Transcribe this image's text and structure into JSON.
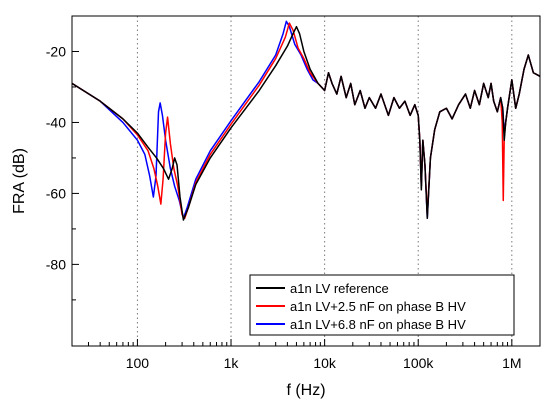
{
  "chart_data": {
    "type": "line",
    "title": "",
    "xlabel": "f (Hz)",
    "ylabel": "FRA (dB)",
    "xscale": "log",
    "xlim": [
      20,
      2000000
    ],
    "ylim": [
      -103,
      -10
    ],
    "grid": "vertical dotted lines at decades",
    "legend_position": "bottom-right",
    "x_ticks": [
      {
        "value": 100,
        "label": "100"
      },
      {
        "value": 1000,
        "label": "1k"
      },
      {
        "value": 10000,
        "label": "10k"
      },
      {
        "value": 100000,
        "label": "100k"
      },
      {
        "value": 1000000,
        "label": "1M"
      }
    ],
    "y_ticks": [
      {
        "value": -20,
        "label": "-20"
      },
      {
        "value": -40,
        "label": "-40"
      },
      {
        "value": -60,
        "label": "-60"
      },
      {
        "value": -80,
        "label": "-80"
      }
    ],
    "series": [
      {
        "name": "a1n LV reference",
        "color": "#000000",
        "points": [
          [
            20,
            -29
          ],
          [
            40,
            -34
          ],
          [
            70,
            -39
          ],
          [
            100,
            -43
          ],
          [
            130,
            -47
          ],
          [
            160,
            -50
          ],
          [
            190,
            -53
          ],
          [
            215,
            -56
          ],
          [
            235,
            -53
          ],
          [
            250,
            -50
          ],
          [
            265,
            -52
          ],
          [
            285,
            -61
          ],
          [
            310,
            -67.5
          ],
          [
            350,
            -64
          ],
          [
            420,
            -57.5
          ],
          [
            600,
            -50
          ],
          [
            1000,
            -41.5
          ],
          [
            2000,
            -31
          ],
          [
            3000,
            -24
          ],
          [
            4000,
            -18.5
          ],
          [
            4600,
            -15
          ],
          [
            5000,
            -13
          ],
          [
            5400,
            -15
          ],
          [
            6000,
            -20
          ],
          [
            7000,
            -25
          ],
          [
            8500,
            -29
          ],
          [
            10000,
            -31
          ],
          [
            11000,
            -26
          ],
          [
            12000,
            -29
          ],
          [
            13500,
            -32
          ],
          [
            15000,
            -27
          ],
          [
            17000,
            -33
          ],
          [
            19000,
            -29
          ],
          [
            21000,
            -35
          ],
          [
            24000,
            -31
          ],
          [
            27000,
            -36
          ],
          [
            30000,
            -33
          ],
          [
            35000,
            -36
          ],
          [
            40000,
            -32
          ],
          [
            48000,
            -38
          ],
          [
            55000,
            -33
          ],
          [
            63000,
            -36
          ],
          [
            72000,
            -34
          ],
          [
            82000,
            -38
          ],
          [
            92000,
            -35
          ],
          [
            100000,
            -38
          ],
          [
            104000,
            -45
          ],
          [
            108000,
            -59
          ],
          [
            112000,
            -45
          ],
          [
            118000,
            -52
          ],
          [
            125000,
            -67
          ],
          [
            135000,
            -50
          ],
          [
            150000,
            -42
          ],
          [
            170000,
            -37
          ],
          [
            200000,
            -36
          ],
          [
            230000,
            -39
          ],
          [
            270000,
            -35
          ],
          [
            320000,
            -32
          ],
          [
            360000,
            -36
          ],
          [
            400000,
            -31
          ],
          [
            450000,
            -35
          ],
          [
            500000,
            -29
          ],
          [
            560000,
            -33
          ],
          [
            600000,
            -29
          ],
          [
            640000,
            -34
          ],
          [
            700000,
            -37
          ],
          [
            760000,
            -33
          ],
          [
            800000,
            -36
          ],
          [
            830000,
            -45
          ],
          [
            860000,
            -40
          ],
          [
            900000,
            -36
          ],
          [
            1000000,
            -28
          ],
          [
            1100000,
            -36
          ],
          [
            1200000,
            -32
          ],
          [
            1350000,
            -25
          ],
          [
            1500000,
            -21
          ],
          [
            1700000,
            -26
          ],
          [
            2000000,
            -27
          ]
        ]
      },
      {
        "name": "a1n LV+2.5 nF on phase B HV",
        "color": "#ff0000",
        "points": [
          [
            20,
            -29
          ],
          [
            40,
            -34
          ],
          [
            70,
            -39
          ],
          [
            100,
            -43.5
          ],
          [
            130,
            -48
          ],
          [
            150,
            -53
          ],
          [
            165,
            -58
          ],
          [
            178,
            -63
          ],
          [
            188,
            -56
          ],
          [
            200,
            -43
          ],
          [
            210,
            -38.5
          ],
          [
            225,
            -46
          ],
          [
            245,
            -53
          ],
          [
            270,
            -58
          ],
          [
            300,
            -66
          ],
          [
            320,
            -67
          ],
          [
            350,
            -64
          ],
          [
            420,
            -57
          ],
          [
            600,
            -49
          ],
          [
            1000,
            -40.5
          ],
          [
            2000,
            -29.5
          ],
          [
            3000,
            -22
          ],
          [
            3800,
            -16
          ],
          [
            4200,
            -12
          ],
          [
            4600,
            -14
          ],
          [
            5200,
            -19
          ],
          [
            6000,
            -22
          ],
          [
            7000,
            -26
          ],
          [
            8500,
            -29
          ],
          [
            10000,
            -31
          ],
          [
            11000,
            -26
          ],
          [
            12000,
            -29
          ],
          [
            13500,
            -32
          ],
          [
            15000,
            -27
          ],
          [
            17000,
            -33
          ],
          [
            19000,
            -29
          ],
          [
            21000,
            -35
          ],
          [
            24000,
            -31
          ],
          [
            27000,
            -36
          ],
          [
            30000,
            -33
          ],
          [
            35000,
            -36
          ],
          [
            40000,
            -32
          ],
          [
            48000,
            -38
          ],
          [
            55000,
            -33
          ],
          [
            63000,
            -36
          ],
          [
            72000,
            -34
          ],
          [
            82000,
            -38
          ],
          [
            92000,
            -35
          ],
          [
            100000,
            -38
          ],
          [
            104000,
            -45
          ],
          [
            108000,
            -58
          ],
          [
            112000,
            -45
          ],
          [
            118000,
            -52
          ],
          [
            125000,
            -66
          ],
          [
            135000,
            -50
          ],
          [
            150000,
            -42
          ],
          [
            170000,
            -37
          ],
          [
            200000,
            -36
          ],
          [
            230000,
            -39
          ],
          [
            270000,
            -35
          ],
          [
            320000,
            -32
          ],
          [
            360000,
            -36
          ],
          [
            400000,
            -31
          ],
          [
            450000,
            -35
          ],
          [
            500000,
            -29
          ],
          [
            560000,
            -33
          ],
          [
            600000,
            -29
          ],
          [
            640000,
            -34
          ],
          [
            700000,
            -37
          ],
          [
            760000,
            -33
          ],
          [
            790000,
            -40
          ],
          [
            810000,
            -62
          ],
          [
            830000,
            -44
          ],
          [
            860000,
            -40
          ],
          [
            900000,
            -36
          ],
          [
            1000000,
            -28
          ],
          [
            1100000,
            -36
          ],
          [
            1200000,
            -32
          ],
          [
            1350000,
            -25
          ],
          [
            1500000,
            -21
          ],
          [
            1700000,
            -26
          ],
          [
            2000000,
            -27
          ]
        ]
      },
      {
        "name": "a1n LV+6.8 nF on phase B HV",
        "color": "#0000ff",
        "points": [
          [
            20,
            -29
          ],
          [
            40,
            -34
          ],
          [
            70,
            -40
          ],
          [
            100,
            -45
          ],
          [
            120,
            -49
          ],
          [
            135,
            -55
          ],
          [
            148,
            -61
          ],
          [
            158,
            -55
          ],
          [
            168,
            -37
          ],
          [
            175,
            -34.5
          ],
          [
            185,
            -38
          ],
          [
            200,
            -45
          ],
          [
            225,
            -53
          ],
          [
            250,
            -58
          ],
          [
            280,
            -62
          ],
          [
            310,
            -67
          ],
          [
            340,
            -64
          ],
          [
            420,
            -56
          ],
          [
            600,
            -48
          ],
          [
            1000,
            -39.5
          ],
          [
            2000,
            -28.5
          ],
          [
            3000,
            -21
          ],
          [
            3600,
            -15
          ],
          [
            3900,
            -11.5
          ],
          [
            4200,
            -13
          ],
          [
            4800,
            -18
          ],
          [
            5600,
            -21
          ],
          [
            6500,
            -25
          ],
          [
            7500,
            -28
          ],
          [
            8500,
            -29
          ],
          [
            10000,
            -31
          ],
          [
            11000,
            -26
          ],
          [
            12000,
            -29
          ],
          [
            13500,
            -32
          ],
          [
            15000,
            -27
          ],
          [
            17000,
            -33
          ],
          [
            19000,
            -29
          ],
          [
            21000,
            -35
          ],
          [
            24000,
            -31
          ],
          [
            27000,
            -36
          ],
          [
            30000,
            -33
          ],
          [
            35000,
            -36
          ],
          [
            40000,
            -32
          ],
          [
            48000,
            -38
          ],
          [
            55000,
            -33
          ],
          [
            63000,
            -36
          ],
          [
            72000,
            -34
          ],
          [
            82000,
            -38
          ],
          [
            92000,
            -35
          ],
          [
            100000,
            -38
          ],
          [
            104000,
            -45
          ],
          [
            108000,
            -58
          ],
          [
            112000,
            -45
          ],
          [
            118000,
            -52
          ],
          [
            125000,
            -67
          ],
          [
            135000,
            -50
          ],
          [
            150000,
            -42
          ],
          [
            170000,
            -37
          ],
          [
            200000,
            -36
          ],
          [
            230000,
            -39
          ],
          [
            270000,
            -35
          ],
          [
            320000,
            -32
          ],
          [
            360000,
            -36
          ],
          [
            400000,
            -31
          ],
          [
            450000,
            -35
          ],
          [
            500000,
            -29
          ],
          [
            560000,
            -33
          ],
          [
            600000,
            -29
          ],
          [
            640000,
            -34
          ],
          [
            700000,
            -37
          ],
          [
            760000,
            -33
          ],
          [
            800000,
            -36
          ],
          [
            830000,
            -43
          ],
          [
            860000,
            -40
          ],
          [
            900000,
            -36
          ],
          [
            1000000,
            -28
          ],
          [
            1100000,
            -36
          ],
          [
            1200000,
            -32
          ],
          [
            1350000,
            -25
          ],
          [
            1500000,
            -21
          ],
          [
            1700000,
            -26
          ],
          [
            2000000,
            -27
          ]
        ]
      }
    ]
  }
}
